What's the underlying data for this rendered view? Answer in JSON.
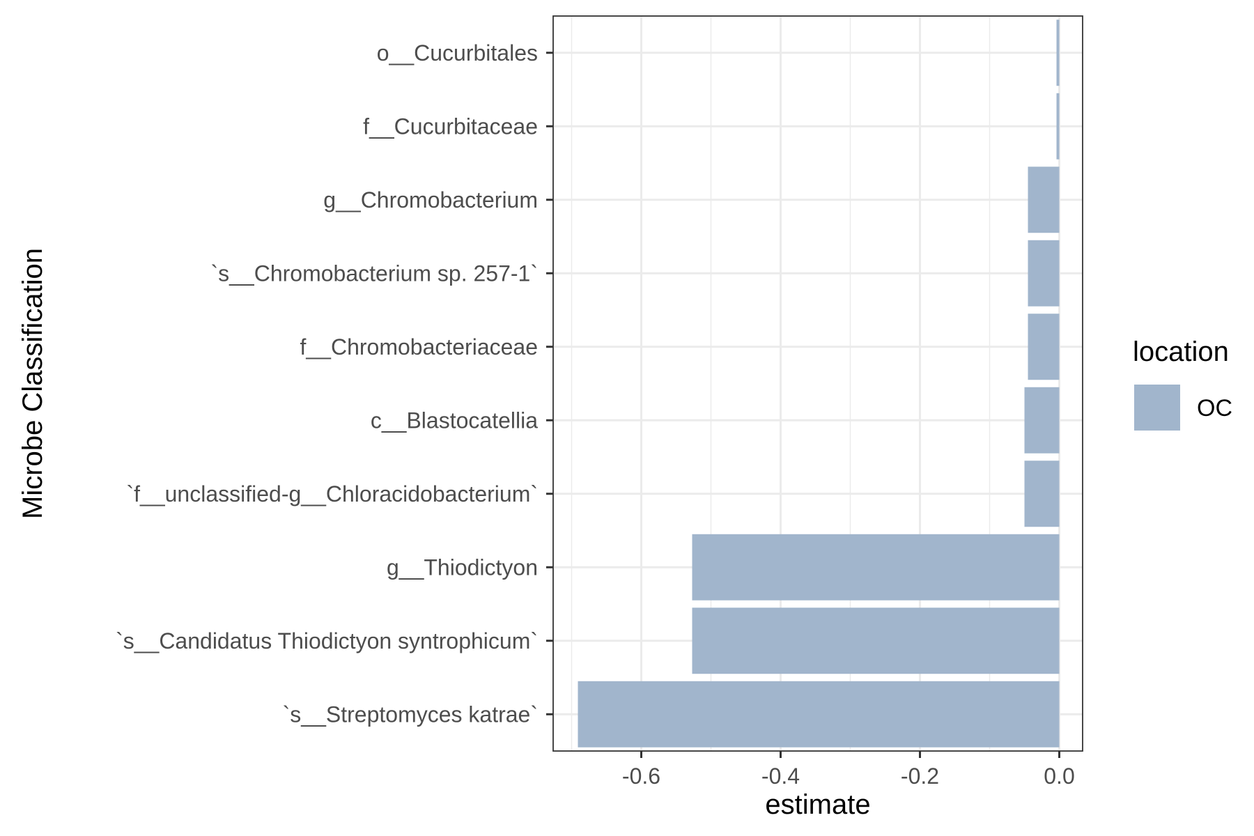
{
  "chart_data": {
    "type": "bar",
    "orientation": "horizontal",
    "title": "",
    "xlabel": "estimate",
    "ylabel": "Microbe Classification",
    "categories": [
      "o__Cucurbitales",
      "f__Cucurbitaceae",
      "g__Chromobacterium",
      "`s__Chromobacterium sp. 257-1`",
      "f__Chromobacteriaceae",
      "c__Blastocatellia",
      "`f__unclassified-g__Chloracidobacterium`",
      "g__Thiodictyon",
      "`s__Candidatus Thiodictyon syntrophicum`",
      "`s__Streptomyces katrae`"
    ],
    "series": [
      {
        "name": "OC",
        "color": "#a1b5cc",
        "values": [
          -0.004,
          -0.004,
          -0.045,
          -0.045,
          -0.045,
          -0.05,
          -0.05,
          -0.527,
          -0.527,
          -0.691
        ]
      }
    ],
    "xlim": [
      -0.7265,
      0.0335
    ],
    "x_ticks": [
      -0.6,
      -0.4,
      -0.2,
      0.0
    ],
    "x_tick_labels": [
      "-0.6",
      "-0.4",
      "-0.2",
      "0.0"
    ],
    "grid": true,
    "legend": {
      "title": "location",
      "position": "right",
      "entries": [
        "OC"
      ]
    }
  }
}
